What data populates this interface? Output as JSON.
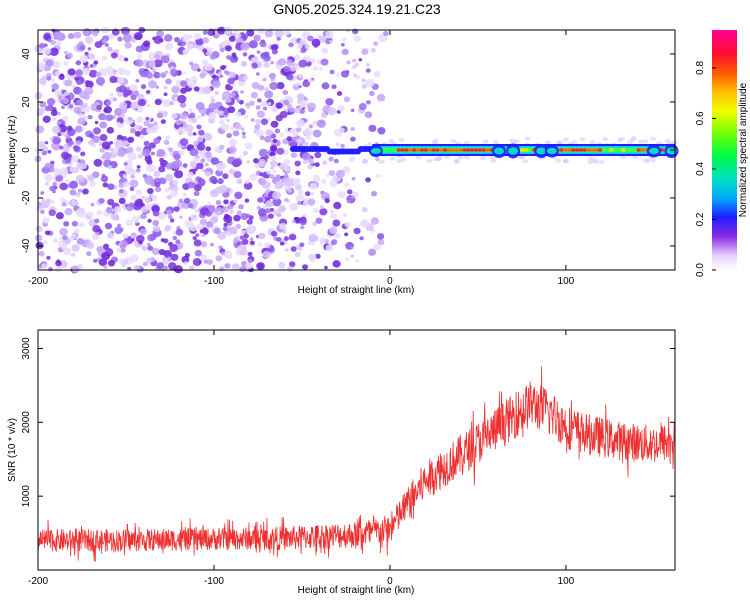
{
  "title": "GN05.2025.324.19.21.C23",
  "chart_data": [
    {
      "type": "heatmap",
      "name": "spectrogram",
      "xlabel": "Height of straight line (km)",
      "ylabel": "Frequency (Hz)",
      "xlim": [
        -200,
        162
      ],
      "ylim": [
        -50,
        50
      ],
      "xticks": [
        -200,
        -100,
        0,
        100
      ],
      "yticks": [
        -40,
        -20,
        0,
        20,
        40
      ],
      "colorbar": {
        "label": "Normalized spectral amplitude",
        "range": [
          0,
          0.95
        ],
        "ticks": [
          "0.0",
          "0.2",
          "0.4",
          "0.6",
          "0.8"
        ]
      },
      "features": {
        "noise_region_x": [
          -200,
          -10
        ],
        "signal_onset_x": -55,
        "signal_center_frequency": 0,
        "signal_peak_amplitude": 0.9
      }
    },
    {
      "type": "line",
      "name": "snr",
      "xlabel": "Height of straight line (km)",
      "ylabel": "SNR (10 * v/v)",
      "xlim": [
        -200,
        162
      ],
      "ylim": [
        0,
        3250
      ],
      "xticks": [
        -200,
        -100,
        0,
        100
      ],
      "yticks": [
        1000,
        2000,
        3000
      ],
      "series": [
        {
          "name": "SNR",
          "color": "#f03030",
          "envelope_x": [
            -200,
            -150,
            -100,
            -60,
            -20,
            0,
            10,
            20,
            40,
            60,
            80,
            90,
            100,
            110,
            130,
            150,
            162
          ],
          "envelope_mean": [
            400,
            400,
            420,
            430,
            480,
            550,
            900,
            1200,
            1550,
            1900,
            2250,
            2150,
            1950,
            1850,
            1750,
            1700,
            1750
          ],
          "noise_halfwidth": [
            150,
            150,
            150,
            160,
            180,
            200,
            230,
            260,
            280,
            300,
            320,
            320,
            300,
            280,
            260,
            260,
            260
          ]
        }
      ]
    }
  ]
}
